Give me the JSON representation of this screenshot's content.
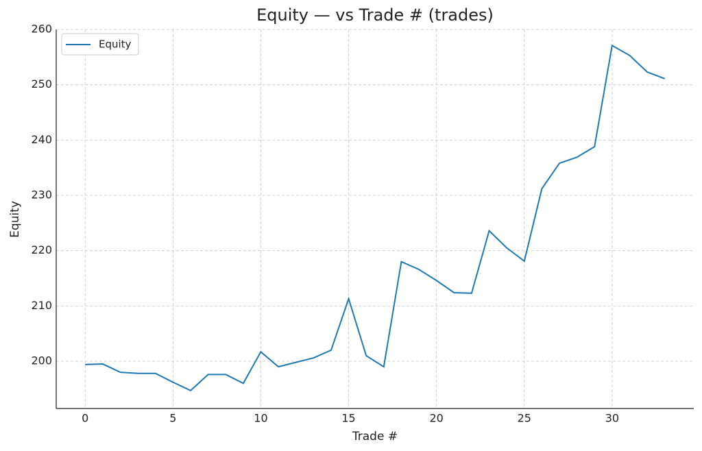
{
  "chart_data": {
    "type": "line",
    "title": "Equity — vs Trade # (trades)",
    "x_label": "Trade #",
    "y_label": "Equity",
    "x": [
      0,
      1,
      2,
      3,
      4,
      5,
      6,
      7,
      8,
      9,
      10,
      11,
      12,
      13,
      14,
      15,
      16,
      17,
      18,
      19,
      20,
      21,
      22,
      23,
      24,
      25,
      26,
      27,
      28,
      29,
      30,
      31,
      32,
      33
    ],
    "series": [
      {
        "name": "Equity",
        "color": "#1f77b4",
        "values": [
          199.4,
          199.5,
          198.0,
          197.8,
          197.8,
          196.2,
          194.7,
          197.6,
          197.6,
          196.0,
          201.7,
          199.0,
          199.8,
          200.6,
          202.0,
          211.3,
          201.0,
          199.0,
          218.0,
          216.6,
          214.6,
          212.4,
          212.3,
          223.6,
          220.5,
          218.1,
          231.2,
          235.8,
          236.9,
          238.8,
          257.1,
          255.3,
          252.3,
          251.1
        ]
      }
    ],
    "xlim": [
      -1.65,
      34.65
    ],
    "ylim": [
      191.45,
      260
    ],
    "xticks": [
      0,
      5,
      10,
      15,
      20,
      25,
      30
    ],
    "yticks": [
      200,
      210,
      220,
      230,
      240,
      250,
      260
    ],
    "grid": true,
    "legend": "upper left"
  }
}
